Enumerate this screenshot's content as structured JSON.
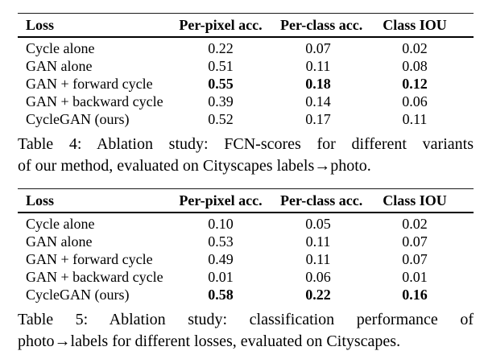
{
  "page": {
    "background": "#ffffff",
    "text_color": "#000000"
  },
  "tables": [
    {
      "name": "table-4-fcn-scores",
      "columns": [
        "Loss",
        "Per-pixel acc.",
        "Per-class acc.",
        "Class IOU"
      ],
      "rows": [
        {
          "loss": "Cycle alone",
          "values": [
            "0.22",
            "0.07",
            "0.02"
          ],
          "bold": false
        },
        {
          "loss": "GAN alone",
          "values": [
            "0.51",
            "0.11",
            "0.08"
          ],
          "bold": false
        },
        {
          "loss": "GAN + forward cycle",
          "values": [
            "0.55",
            "0.18",
            "0.12"
          ],
          "bold": true
        },
        {
          "loss": "GAN + backward cycle",
          "values": [
            "0.39",
            "0.14",
            "0.06"
          ],
          "bold": false
        },
        {
          "loss": "CycleGAN (ours)",
          "values": [
            "0.52",
            "0.17",
            "0.11"
          ],
          "bold": false
        }
      ],
      "caption_line1": "Table 4: Ablation study: FCN-scores for different variants",
      "caption_line2": "of our method, evaluated on Cityscapes labels→photo."
    },
    {
      "name": "table-5-classification-performance",
      "columns": [
        "Loss",
        "Per-pixel acc.",
        "Per-class acc.",
        "Class IOU"
      ],
      "rows": [
        {
          "loss": "Cycle alone",
          "values": [
            "0.10",
            "0.05",
            "0.02"
          ],
          "bold": false
        },
        {
          "loss": "GAN alone",
          "values": [
            "0.53",
            "0.11",
            "0.07"
          ],
          "bold": false
        },
        {
          "loss": "GAN + forward cycle",
          "values": [
            "0.49",
            "0.11",
            "0.07"
          ],
          "bold": false
        },
        {
          "loss": "GAN + backward cycle",
          "values": [
            "0.01",
            "0.06",
            "0.01"
          ],
          "bold": false
        },
        {
          "loss": "CycleGAN (ours)",
          "values": [
            "0.58",
            "0.22",
            "0.16"
          ],
          "bold": true
        }
      ],
      "caption_line1": "Table 5: Ablation study: classification performance of",
      "caption_line2": "photo→labels for different losses, evaluated on Cityscapes."
    }
  ]
}
